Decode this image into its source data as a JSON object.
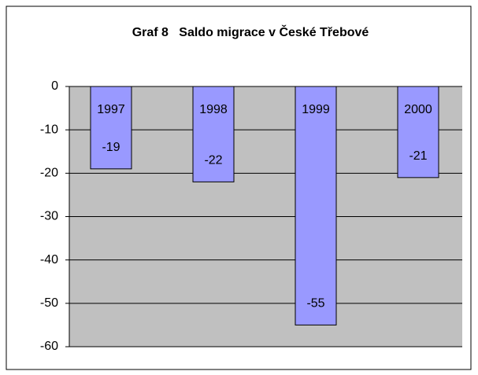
{
  "chart_data": {
    "type": "bar",
    "title": "Graf 8   Saldo migrace v České Třebové",
    "categories": [
      "1997",
      "1998",
      "1999",
      "2000"
    ],
    "values": [
      -19,
      -22,
      -55,
      -21
    ],
    "color": "#9999ff",
    "background": "#c0c0c0",
    "ylim": [
      -60,
      0
    ],
    "yticks": [
      0,
      -10,
      -20,
      -30,
      -40,
      -50,
      -60
    ],
    "grid": true
  }
}
